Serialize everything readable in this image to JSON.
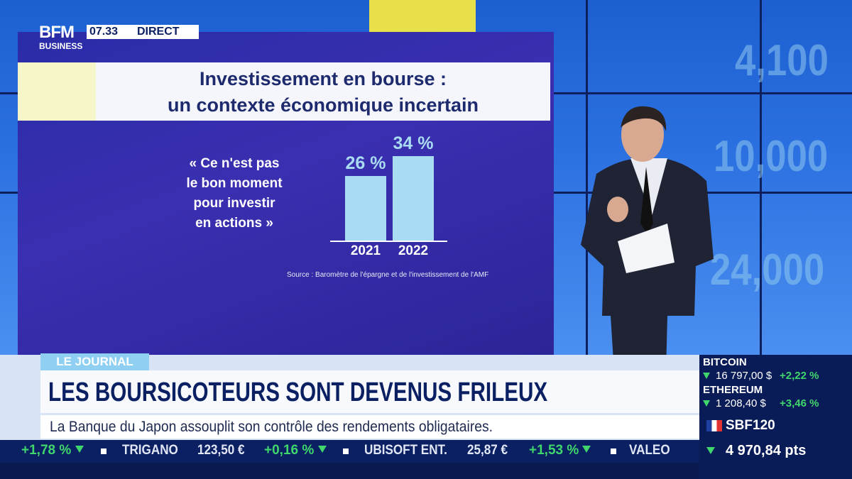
{
  "header": {
    "logo_top": "BFM",
    "logo_bottom": "BUSINESS",
    "time": "07.33",
    "live": "DIRECT"
  },
  "screen": {
    "title_lines": [
      "Investissement en bourse :",
      "un contexte économique incertain"
    ],
    "quote_lines": [
      "« Ce n'est pas",
      "le bon moment",
      "pour investir",
      "en actions »"
    ],
    "source": "Source : Baromètre de l'épargne et de l'investissement de l'AMF",
    "wall_numbers": [
      "4,100",
      "10,000",
      "24,000"
    ]
  },
  "chart_data": {
    "type": "bar",
    "categories": [
      "2021",
      "2022"
    ],
    "values": [
      26,
      34
    ],
    "value_labels": [
      "26 %",
      "34 %"
    ],
    "color": "#a9dcf2"
  },
  "lower_third": {
    "tag": "LE JOURNAL",
    "headline": "LES BOURSICOTEURS SONT DEVENUS FRILEUX",
    "subline": "La Banque du Japon assouplit son contrôle des rendements obligataires."
  },
  "ticker": {
    "items": [
      {
        "change": "+1,78 %"
      },
      {
        "name": "TRIGANO",
        "price": "123,50 €",
        "change": "+0,16 %"
      },
      {
        "name": "UBISOFT ENT.",
        "price": "25,87 €",
        "change": "+1,53 %"
      },
      {
        "name": "VALEO"
      }
    ]
  },
  "markets": [
    {
      "name": "BITCOIN",
      "price": "16 797,00 $",
      "change": "+2,22 %"
    },
    {
      "name": "ETHEREUM",
      "price": "1 208,40 $",
      "change": "+3,46 %"
    },
    {
      "name": "SBF120",
      "price": "4 970,84 pts"
    }
  ]
}
